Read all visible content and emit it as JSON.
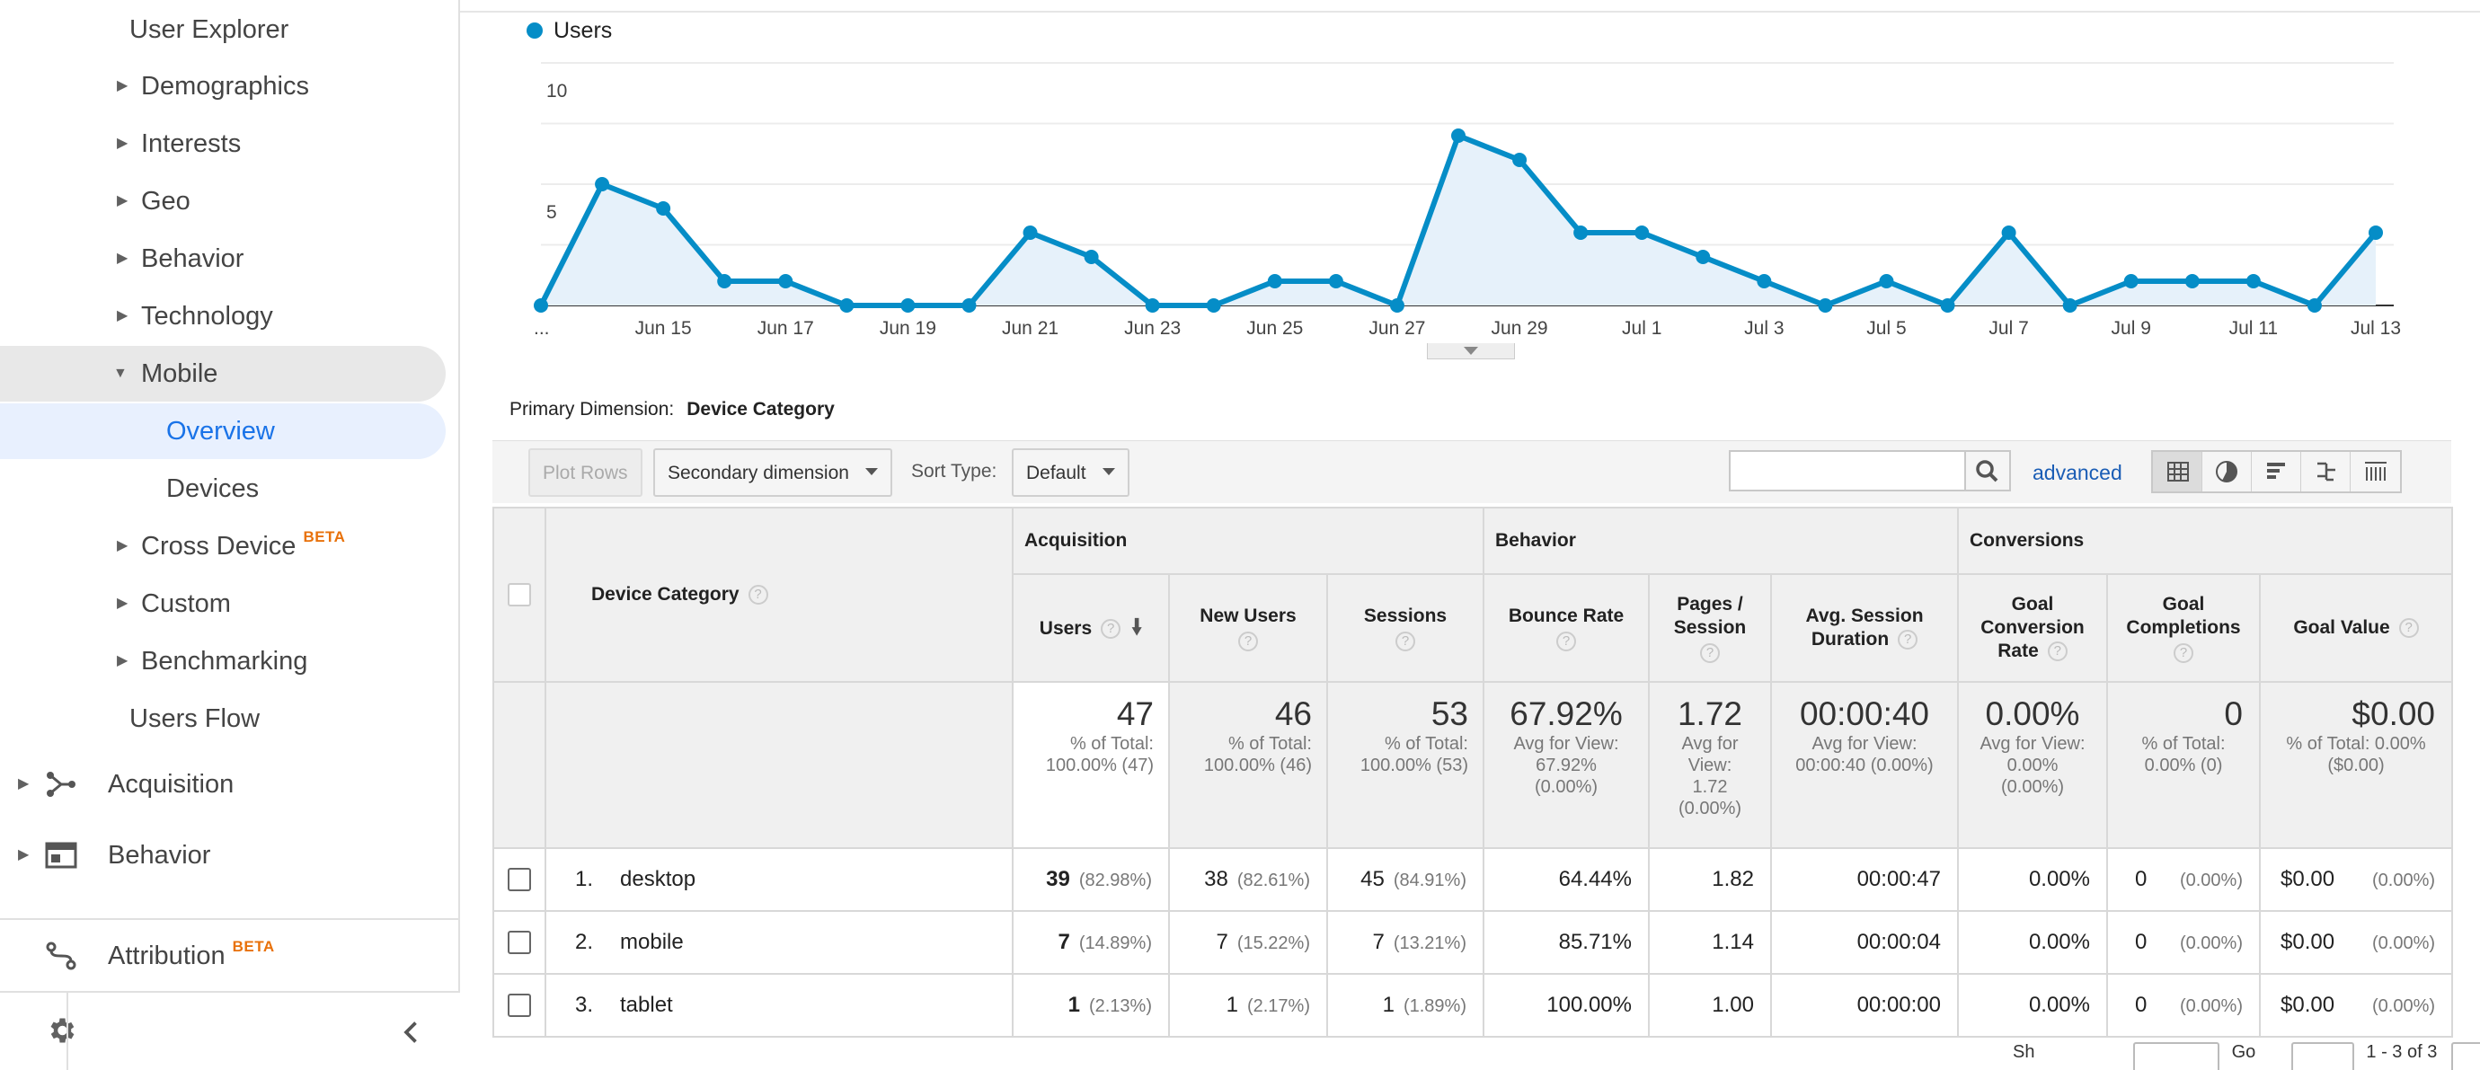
{
  "sidebar": {
    "items": [
      {
        "label": "User Explorer"
      },
      {
        "label": "Demographics"
      },
      {
        "label": "Interests"
      },
      {
        "label": "Geo"
      },
      {
        "label": "Behavior"
      },
      {
        "label": "Technology"
      },
      {
        "label": "Mobile"
      },
      {
        "label": "Overview"
      },
      {
        "label": "Devices"
      },
      {
        "label": "Cross Device",
        "badge": "BETA"
      },
      {
        "label": "Custom"
      },
      {
        "label": "Benchmarking"
      },
      {
        "label": "Users Flow"
      }
    ],
    "sections": [
      {
        "label": "Acquisition"
      },
      {
        "label": "Behavior"
      },
      {
        "label": "Attribution",
        "badge": "BETA"
      }
    ]
  },
  "chart_data": {
    "type": "area",
    "legend": "Users",
    "yticks": [
      "10",
      "5"
    ],
    "ylim": [
      0,
      10
    ],
    "x_labels": [
      "...",
      "Jun 15",
      "Jun 17",
      "Jun 19",
      "Jun 21",
      "Jun 23",
      "Jun 25",
      "Jun 27",
      "Jun 29",
      "Jul 1",
      "Jul 3",
      "Jul 5",
      "Jul 7",
      "Jul 9",
      "Jul 11",
      "Jul 13"
    ],
    "series": [
      {
        "name": "Users",
        "color": "#058dc7",
        "values": [
          0,
          5,
          4,
          1,
          1,
          0,
          0,
          0,
          3,
          2,
          0,
          0,
          1,
          1,
          0,
          7,
          6,
          3,
          3,
          2,
          1,
          0,
          1,
          0,
          3,
          0,
          1,
          1,
          1,
          0,
          3
        ]
      }
    ]
  },
  "primary_dimension": {
    "label": "Primary Dimension:",
    "value": "Device Category"
  },
  "toolbar": {
    "plot_rows": "Plot Rows",
    "secondary_dimension": "Secondary dimension",
    "sort_type_label": "Sort Type:",
    "sort_type_value": "Default",
    "search_placeholder": "",
    "advanced": "advanced"
  },
  "table": {
    "dimension_header": "Device Category",
    "groups": [
      "Acquisition",
      "Behavior",
      "Conversions"
    ],
    "columns": {
      "users": "Users",
      "new_users": "New Users",
      "sessions": "Sessions",
      "bounce_rate": "Bounce Rate",
      "pages_session_1": "Pages /",
      "pages_session_2": "Session",
      "avg_duration_1": "Avg. Session",
      "avg_duration_2": "Duration",
      "goal_conv_1": "Goal",
      "goal_conv_2": "Conversion",
      "goal_conv_3": "Rate",
      "goal_comp_1": "Goal",
      "goal_comp_2": "Completions",
      "goal_value": "Goal Value"
    },
    "totals": {
      "users": {
        "value": "47",
        "sub1": "% of Total:",
        "sub2": "100.00% (47)"
      },
      "new_users": {
        "value": "46",
        "sub1": "% of Total:",
        "sub2": "100.00% (46)"
      },
      "sessions": {
        "value": "53",
        "sub1": "% of Total:",
        "sub2": "100.00% (53)"
      },
      "bounce_rate": {
        "value": "67.92%",
        "sub1": "Avg for View:",
        "sub2": "67.92%",
        "sub3": "(0.00%)"
      },
      "pages_session": {
        "value": "1.72",
        "sub1": "Avg for",
        "sub2": "View:",
        "sub3": "1.72",
        "sub4": "(0.00%)"
      },
      "avg_duration": {
        "value": "00:00:40",
        "sub1": "Avg for View:",
        "sub2": "00:00:40 (0.00%)"
      },
      "goal_conv": {
        "value": "0.00%",
        "sub1": "Avg for View:",
        "sub2": "0.00%",
        "sub3": "(0.00%)"
      },
      "goal_comp": {
        "value": "0",
        "sub1": "% of Total:",
        "sub2": "0.00% (0)"
      },
      "goal_value": {
        "value": "$0.00",
        "sub1": "% of Total: 0.00%",
        "sub2": "($0.00)"
      }
    },
    "rows": [
      {
        "idx": "1.",
        "name": "desktop",
        "users": "39",
        "users_pct": "(82.98%)",
        "new_users": "38",
        "new_users_pct": "(82.61%)",
        "sessions": "45",
        "sessions_pct": "(84.91%)",
        "bounce_rate": "64.44%",
        "pages_session": "1.82",
        "avg_duration": "00:00:47",
        "goal_conv": "0.00%",
        "goal_comp": "0",
        "goal_comp_pct": "(0.00%)",
        "goal_value": "$0.00",
        "goal_value_pct": "(0.00%)"
      },
      {
        "idx": "2.",
        "name": "mobile",
        "users": "7",
        "users_pct": "(14.89%)",
        "new_users": "7",
        "new_users_pct": "(15.22%)",
        "sessions": "7",
        "sessions_pct": "(13.21%)",
        "bounce_rate": "85.71%",
        "pages_session": "1.14",
        "avg_duration": "00:00:04",
        "goal_conv": "0.00%",
        "goal_comp": "0",
        "goal_comp_pct": "(0.00%)",
        "goal_value": "$0.00",
        "goal_value_pct": "(0.00%)"
      },
      {
        "idx": "3.",
        "name": "tablet",
        "users": "1",
        "users_pct": "(2.13%)",
        "new_users": "1",
        "new_users_pct": "(2.17%)",
        "sessions": "1",
        "sessions_pct": "(1.89%)",
        "bounce_rate": "100.00%",
        "pages_session": "1.00",
        "avg_duration": "00:00:00",
        "goal_conv": "0.00%",
        "goal_comp": "0",
        "goal_comp_pct": "(0.00%)",
        "goal_value": "$0.00",
        "goal_value_pct": "(0.00%)"
      }
    ]
  },
  "pager": {
    "show_label": "Sh",
    "goto_label": "Go",
    "range": "1 - 3 of 3"
  }
}
